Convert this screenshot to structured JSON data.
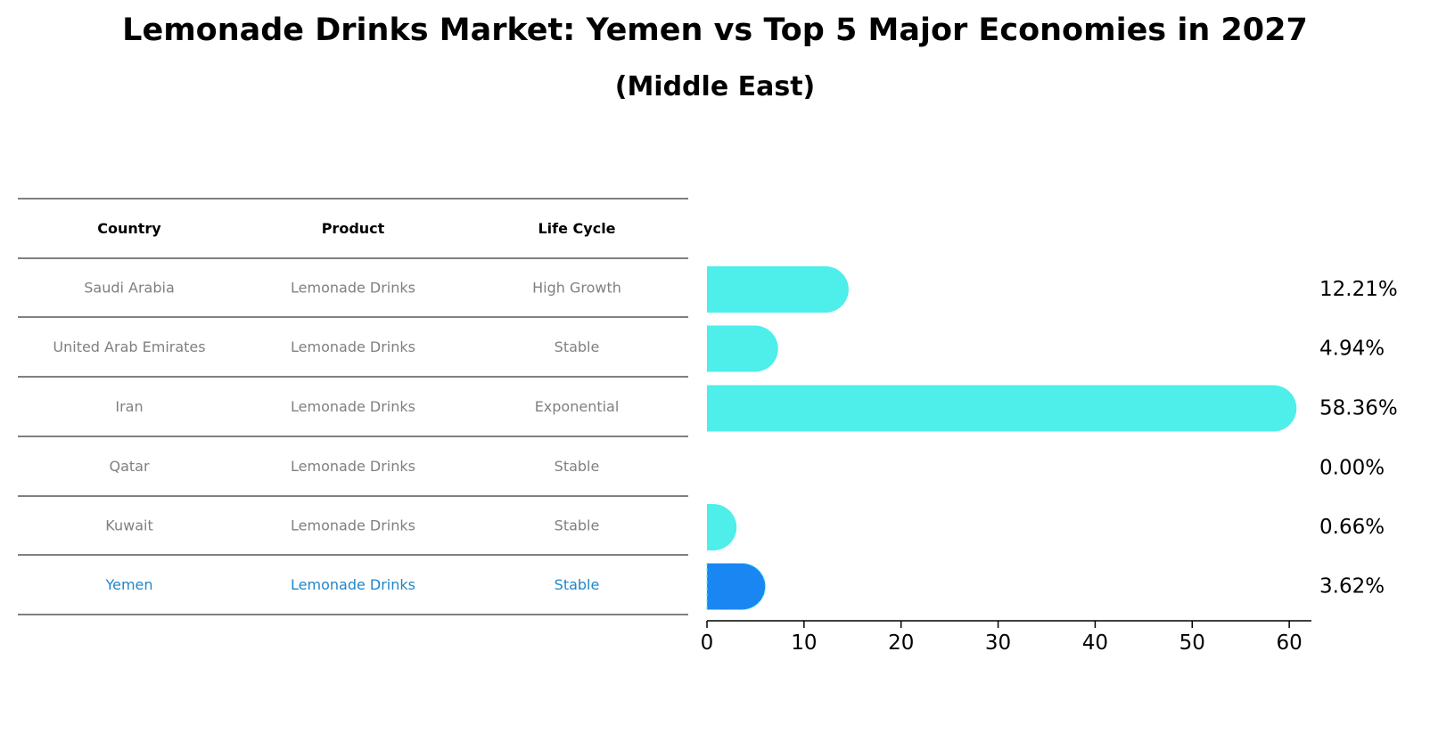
{
  "title": "Lemonade Drinks Market: Yemen vs Top 5 Major Economies in 2027",
  "subtitle": "(Middle East)",
  "colors": {
    "bar": "#4EEEEA",
    "highlight": "#1A86F2",
    "muted_text": "#808080",
    "highlight_text": "#1F86C9"
  },
  "table": {
    "headers": [
      "Country",
      "Product",
      "Life Cycle"
    ],
    "rows": [
      {
        "country": "Saudi Arabia",
        "product": "Lemonade Drinks",
        "life_cycle": "High Growth",
        "highlight": false
      },
      {
        "country": "United Arab Emirates",
        "product": "Lemonade Drinks",
        "life_cycle": "Stable",
        "highlight": false
      },
      {
        "country": "Iran",
        "product": "Lemonade Drinks",
        "life_cycle": "Exponential",
        "highlight": false
      },
      {
        "country": "Qatar",
        "product": "Lemonade Drinks",
        "life_cycle": "Stable",
        "highlight": false
      },
      {
        "country": "Kuwait",
        "product": "Lemonade Drinks",
        "life_cycle": "Stable",
        "highlight": false
      },
      {
        "country": "Yemen",
        "product": "Lemonade Drinks",
        "life_cycle": "Stable",
        "highlight": true
      }
    ]
  },
  "chart_data": {
    "type": "bar",
    "orientation": "horizontal",
    "categories": [
      "Saudi Arabia",
      "United Arab Emirates",
      "Iran",
      "Qatar",
      "Kuwait",
      "Yemen"
    ],
    "values": [
      12.21,
      4.94,
      58.36,
      0.0,
      0.66,
      3.62
    ],
    "value_labels": [
      "12.21%",
      "4.94%",
      "58.36%",
      "0.00%",
      "0.66%",
      "3.62%"
    ],
    "highlight_category": "Yemen",
    "xlim": [
      0,
      61
    ],
    "xticks": [
      0,
      10,
      20,
      30,
      40,
      50,
      60
    ],
    "xlabel": "",
    "ylabel": "",
    "grid": false
  }
}
